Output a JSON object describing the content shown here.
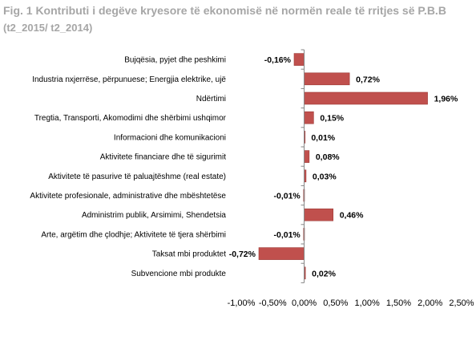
{
  "chart_data": {
    "type": "bar",
    "orientation": "horizontal",
    "title": "Fig. 1 Kontributi i degëve kryesore të ekonomisë në normën reale të rritjes së P.B.B",
    "subtitle": "(t2_2015/ t2_2014)",
    "categories": [
      "Bujqësia, pyjet dhe peshkimi",
      "Industria nxjerrëse, përpunuese; Energjia elektrike, ujë",
      "Ndërtimi",
      "Tregtia, Transporti, Akomodimi dhe shërbimi ushqimor",
      "Informacioni dhe komunikacioni",
      "Aktivitete financiare dhe të sigurimit",
      "Aktivitete të pasurive të paluajtëshme (real estate)",
      "Aktivitete profesionale, administrative dhe mbështetëse",
      "Administrim publik, Arsimimi, Shendetsia",
      "Arte, argëtim dhe çlodhje; Aktivitete të tjera shërbimi",
      "Taksat mbi produktet",
      "Subvencione mbi produkte"
    ],
    "values": [
      -0.16,
      0.72,
      1.96,
      0.15,
      0.01,
      0.08,
      0.03,
      -0.01,
      0.46,
      -0.01,
      -0.72,
      0.02
    ],
    "value_labels": [
      "-0,16%",
      "0,72%",
      "1,96%",
      "0,15%",
      "0,01%",
      "0,08%",
      "0,03%",
      "-0,01%",
      "0,46%",
      "-0,01%",
      "-0,72%",
      "0,02%"
    ],
    "xlim": [
      -1.0,
      2.5
    ],
    "x_ticks": [
      -1.0,
      -0.5,
      0.0,
      0.5,
      1.0,
      1.5,
      2.0,
      2.5
    ],
    "x_tick_labels": [
      "-1,00%",
      "-0,50%",
      "0,00%",
      "0,50%",
      "1,00%",
      "1,50%",
      "2,00%",
      "2,50%"
    ],
    "xlabel": "",
    "ylabel": "",
    "grid": false,
    "legend": "none",
    "bar_color": "#c0504d",
    "axis_color": "#868686"
  }
}
